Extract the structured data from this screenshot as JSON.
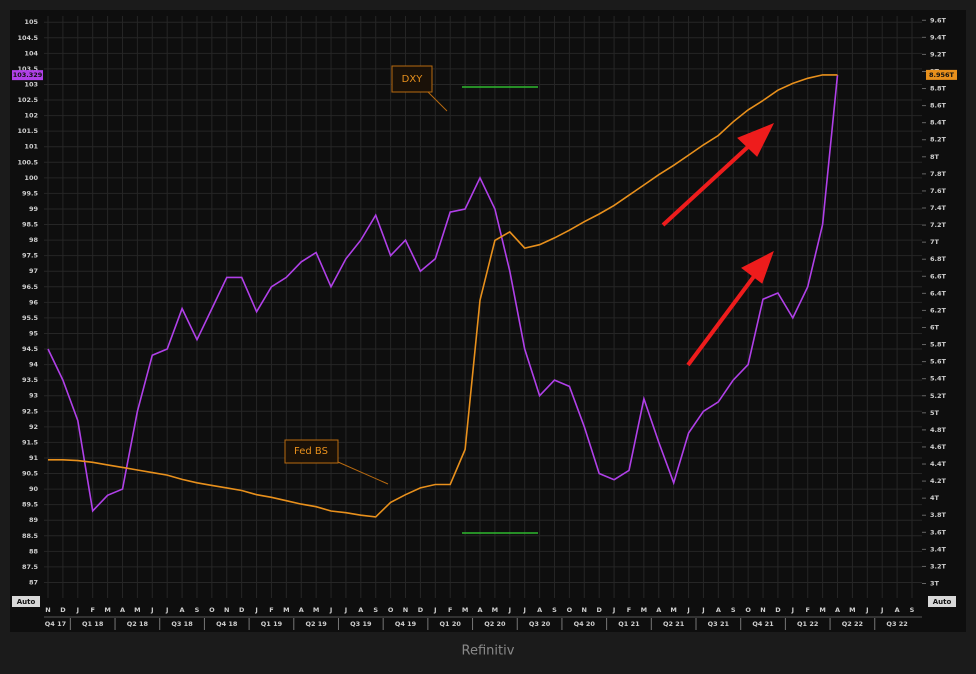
{
  "chart_data": {
    "type": "line",
    "categories": [
      "N",
      "D",
      "J",
      "F",
      "M",
      "A",
      "M",
      "J",
      "J",
      "A",
      "S",
      "O",
      "N",
      "D",
      "J",
      "F",
      "M",
      "A",
      "M",
      "J",
      "J",
      "A",
      "S",
      "O",
      "N",
      "D",
      "J",
      "F",
      "M",
      "A",
      "M",
      "J",
      "J",
      "A",
      "S",
      "O",
      "N",
      "D",
      "J",
      "F",
      "M",
      "A",
      "M",
      "J",
      "J",
      "A",
      "S",
      "O",
      "N",
      "D",
      "J",
      "F",
      "M",
      "A",
      "M",
      "J",
      "J",
      "A",
      "S"
    ],
    "quarters": [
      "Q4 17",
      "Q1 18",
      "Q2 18",
      "Q3 18",
      "Q4 18",
      "Q1 19",
      "Q2 19",
      "Q3 19",
      "Q4 19",
      "Q1 20",
      "Q2 20",
      "Q3 20",
      "Q4 20",
      "Q1 21",
      "Q2 21",
      "Q3 21",
      "Q4 21",
      "Q1 22",
      "Q2 22",
      "Q3 22"
    ],
    "series": [
      {
        "name": "DXY",
        "color": "#b040e8",
        "last_label": "103.329",
        "values": [
          94.5,
          93.5,
          92.2,
          89.3,
          89.8,
          90.0,
          92.5,
          94.3,
          94.5,
          95.8,
          94.8,
          95.8,
          96.8,
          96.8,
          95.7,
          96.5,
          96.8,
          97.3,
          97.6,
          96.5,
          97.4,
          98.0,
          98.8,
          97.5,
          98.0,
          97.0,
          97.4,
          98.9,
          99.0,
          100.0,
          99.0,
          97.0,
          94.5,
          93.0,
          93.5,
          93.3,
          92.0,
          90.5,
          90.3,
          90.6,
          92.9,
          91.5,
          90.2,
          91.8,
          92.5,
          92.8,
          93.5,
          94.0,
          96.1,
          96.3,
          95.5,
          96.5,
          98.5,
          103.3,
          null,
          null,
          null,
          null,
          null
        ]
      },
      {
        "name": "Fed BS",
        "color": "#e8901c",
        "axis": "y2",
        "last_label": "8.956T",
        "values": [
          4.45,
          4.45,
          4.44,
          4.42,
          4.39,
          4.36,
          4.33,
          4.3,
          4.27,
          4.22,
          4.18,
          4.15,
          4.12,
          4.09,
          4.04,
          4.01,
          3.97,
          3.93,
          3.9,
          3.85,
          3.83,
          3.8,
          3.78,
          3.95,
          4.04,
          4.12,
          4.16,
          4.16,
          4.57,
          6.32,
          7.02,
          7.12,
          6.93,
          6.97,
          7.05,
          7.14,
          7.24,
          7.33,
          7.43,
          7.55,
          7.67,
          7.79,
          7.9,
          8.02,
          8.14,
          8.25,
          8.41,
          8.55,
          8.66,
          8.78,
          8.86,
          8.92,
          8.96,
          8.96,
          null,
          null,
          null,
          null,
          null
        ]
      }
    ],
    "ylim": [
      86.5,
      105.2
    ],
    "yticks": [
      87,
      87.5,
      88,
      88.5,
      89,
      89.5,
      90,
      90.5,
      91,
      91.5,
      92,
      92.5,
      93,
      93.5,
      94,
      94.5,
      95,
      95.5,
      96,
      96.5,
      97,
      97.5,
      98,
      98.5,
      99,
      99.5,
      100,
      100.5,
      101,
      101.5,
      102,
      102.5,
      103,
      103.5,
      104,
      104.5,
      105
    ],
    "y2lim": [
      2.83,
      9.65
    ],
    "y2ticks": [
      {
        "value": 3,
        "label": "3T"
      },
      {
        "value": 3.2,
        "label": "3.2T"
      },
      {
        "value": 3.4,
        "label": "3.4T"
      },
      {
        "value": 3.6,
        "label": "3.6T"
      },
      {
        "value": 3.8,
        "label": "3.8T"
      },
      {
        "value": 4,
        "label": "4T"
      },
      {
        "value": 4.2,
        "label": "4.2T"
      },
      {
        "value": 4.4,
        "label": "4.4T"
      },
      {
        "value": 4.6,
        "label": "4.6T"
      },
      {
        "value": 4.8,
        "label": "4.8T"
      },
      {
        "value": 5,
        "label": "5T"
      },
      {
        "value": 5.2,
        "label": "5.2T"
      },
      {
        "value": 5.4,
        "label": "5.4T"
      },
      {
        "value": 5.6,
        "label": "5.6T"
      },
      {
        "value": 5.8,
        "label": "5.8T"
      },
      {
        "value": 6,
        "label": "6T"
      },
      {
        "value": 6.2,
        "label": "6.2T"
      },
      {
        "value": 6.4,
        "label": "6.4T"
      },
      {
        "value": 6.6,
        "label": "6.6T"
      },
      {
        "value": 6.8,
        "label": "6.8T"
      },
      {
        "value": 7,
        "label": "7T"
      },
      {
        "value": 7.2,
        "label": "7.2T"
      },
      {
        "value": 7.4,
        "label": "7.4T"
      },
      {
        "value": 7.6,
        "label": "7.6T"
      },
      {
        "value": 7.8,
        "label": "7.8T"
      },
      {
        "value": 8,
        "label": "8T"
      },
      {
        "value": 8.2,
        "label": "8.2T"
      },
      {
        "value": 8.4,
        "label": "8.4T"
      },
      {
        "value": 8.6,
        "label": "8.6T"
      },
      {
        "value": 8.8,
        "label": "8.8T"
      },
      {
        "value": 9,
        "label": "9T"
      },
      {
        "value": 9.2,
        "label": "9.2T"
      },
      {
        "value": 9.4,
        "label": "9.4T"
      },
      {
        "value": 9.6,
        "label": "9.6T"
      }
    ],
    "grid": true,
    "annotations": [
      "DXY",
      "Fed BS"
    ],
    "buttons": [
      "Auto",
      "Auto"
    ],
    "source": "Refinitiv"
  }
}
